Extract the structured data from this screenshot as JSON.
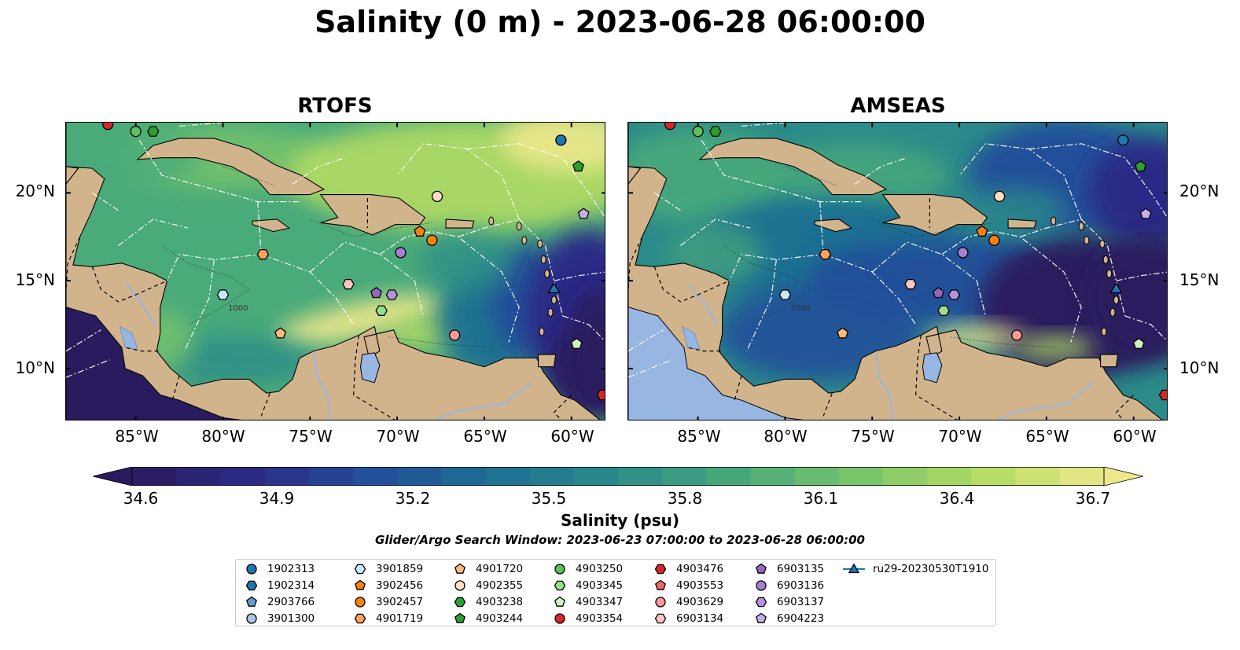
{
  "title": "Salinity (0 m) - 2023-06-28 06:00:00",
  "panels": [
    {
      "name": "RTOFS",
      "variant": "rtofs"
    },
    {
      "name": "AMSEAS",
      "variant": "amseas"
    }
  ],
  "map_extent": {
    "lon": [
      -89,
      -58
    ],
    "lat": [
      7,
      24
    ]
  },
  "lon_ticks": [
    "85°W",
    "80°W",
    "75°W",
    "70°W",
    "65°W",
    "60°W"
  ],
  "lon_tick_values": [
    -85,
    -80,
    -75,
    -70,
    -65,
    -60
  ],
  "lat_ticks": [
    "10°N",
    "15°N",
    "20°N"
  ],
  "lat_tick_values": [
    10,
    15,
    20
  ],
  "contour_label": "1000",
  "colorbar": {
    "label": "Salinity (psu)",
    "min": 34.6,
    "max": 36.7,
    "ticks": [
      "34.6",
      "34.9",
      "35.2",
      "35.5",
      "35.8",
      "36.1",
      "36.4",
      "36.7"
    ],
    "colormap": [
      "#2a1a5e",
      "#2b2a86",
      "#23509a",
      "#1e6f92",
      "#2b8b8a",
      "#4aaa7a",
      "#79c56a",
      "#b3dc63",
      "#eee88b"
    ],
    "extend": "both"
  },
  "search_window": "Glider/Argo Search Window: 2023-06-23 07:00:00 to 2023-06-28 06:00:00",
  "colors": {
    "land": "#d2b48c",
    "lake": "#97b6e1",
    "white_lines": "#ffffff"
  },
  "legend": [
    {
      "id": "1902313",
      "marker": "circle",
      "color": "#1f77b4"
    },
    {
      "id": "1902314",
      "marker": "hexagon",
      "color": "#1f77b4"
    },
    {
      "id": "2903766",
      "marker": "pentagon",
      "color": "#5aa0d2"
    },
    {
      "id": "3901300",
      "marker": "circle",
      "color": "#aec7e8"
    },
    {
      "id": "3901859",
      "marker": "hexagon",
      "color": "#c6e9f5"
    },
    {
      "id": "3902456",
      "marker": "pentagon",
      "color": "#ff7f0e"
    },
    {
      "id": "3902457",
      "marker": "circle",
      "color": "#ff7f0e"
    },
    {
      "id": "4901719",
      "marker": "hexagon",
      "color": "#ffa25a"
    },
    {
      "id": "4901720",
      "marker": "pentagon",
      "color": "#ffbb78"
    },
    {
      "id": "4902355",
      "marker": "circle",
      "color": "#ffdfbf"
    },
    {
      "id": "4903238",
      "marker": "hexagon",
      "color": "#2ca02c"
    },
    {
      "id": "4903244",
      "marker": "pentagon",
      "color": "#2ca02c"
    },
    {
      "id": "4903250",
      "marker": "circle",
      "color": "#5cc15c"
    },
    {
      "id": "4903345",
      "marker": "hexagon",
      "color": "#98df8a"
    },
    {
      "id": "4903347",
      "marker": "pentagon",
      "color": "#c9f2c0"
    },
    {
      "id": "4903354",
      "marker": "circle",
      "color": "#d62728"
    },
    {
      "id": "4903476",
      "marker": "hexagon",
      "color": "#d62728"
    },
    {
      "id": "4903553",
      "marker": "pentagon",
      "color": "#ec6a6b"
    },
    {
      "id": "4903629",
      "marker": "circle",
      "color": "#ff9896"
    },
    {
      "id": "6903134",
      "marker": "hexagon",
      "color": "#ffc6c4"
    },
    {
      "id": "6903135",
      "marker": "pentagon",
      "color": "#9467bd"
    },
    {
      "id": "6903136",
      "marker": "circle",
      "color": "#a57fd0"
    },
    {
      "id": "6903137",
      "marker": "hexagon",
      "color": "#b591e0"
    },
    {
      "id": "6904223",
      "marker": "pentagon",
      "color": "#c5b0e5"
    },
    {
      "id": "ru29-20230530T1910",
      "marker": "triangle-line",
      "color": "#1f77b4"
    }
  ],
  "platforms": [
    {
      "id": "4903354",
      "lon": -86.6,
      "lat": 23.9
    },
    {
      "id": "4903250",
      "lon": -85.0,
      "lat": 23.5
    },
    {
      "id": "4903238",
      "lon": -84.0,
      "lat": 23.5
    },
    {
      "id": "1902313",
      "lon": -60.6,
      "lat": 23.0
    },
    {
      "id": "4903244",
      "lon": -59.6,
      "lat": 21.5
    },
    {
      "id": "4902355",
      "lon": -67.7,
      "lat": 19.8
    },
    {
      "id": "6904223",
      "lon": -59.3,
      "lat": 18.8
    },
    {
      "id": "3902456",
      "lon": -68.7,
      "lat": 17.8
    },
    {
      "id": "3902457",
      "lon": -68.0,
      "lat": 17.3
    },
    {
      "id": "4901719",
      "lon": -77.7,
      "lat": 16.5
    },
    {
      "id": "6903136",
      "lon": -69.8,
      "lat": 16.6
    },
    {
      "id": "6903134",
      "lon": -72.8,
      "lat": 14.8
    },
    {
      "id": "3901859",
      "lon": -80.0,
      "lat": 14.2
    },
    {
      "id": "6903135",
      "lon": -71.2,
      "lat": 14.3
    },
    {
      "id": "6903137",
      "lon": -70.3,
      "lat": 14.2
    },
    {
      "id": "4903345",
      "lon": -70.9,
      "lat": 13.3
    },
    {
      "id": "4901720",
      "lon": -76.7,
      "lat": 12.0
    },
    {
      "id": "4903629",
      "lon": -66.7,
      "lat": 11.9
    },
    {
      "id": "4903347",
      "lon": -59.7,
      "lat": 11.4
    },
    {
      "id": "4903476",
      "lon": -58.2,
      "lat": 8.5
    },
    {
      "id": "ru29-20230530T1910",
      "lon": -61.0,
      "lat": 14.5
    }
  ]
}
